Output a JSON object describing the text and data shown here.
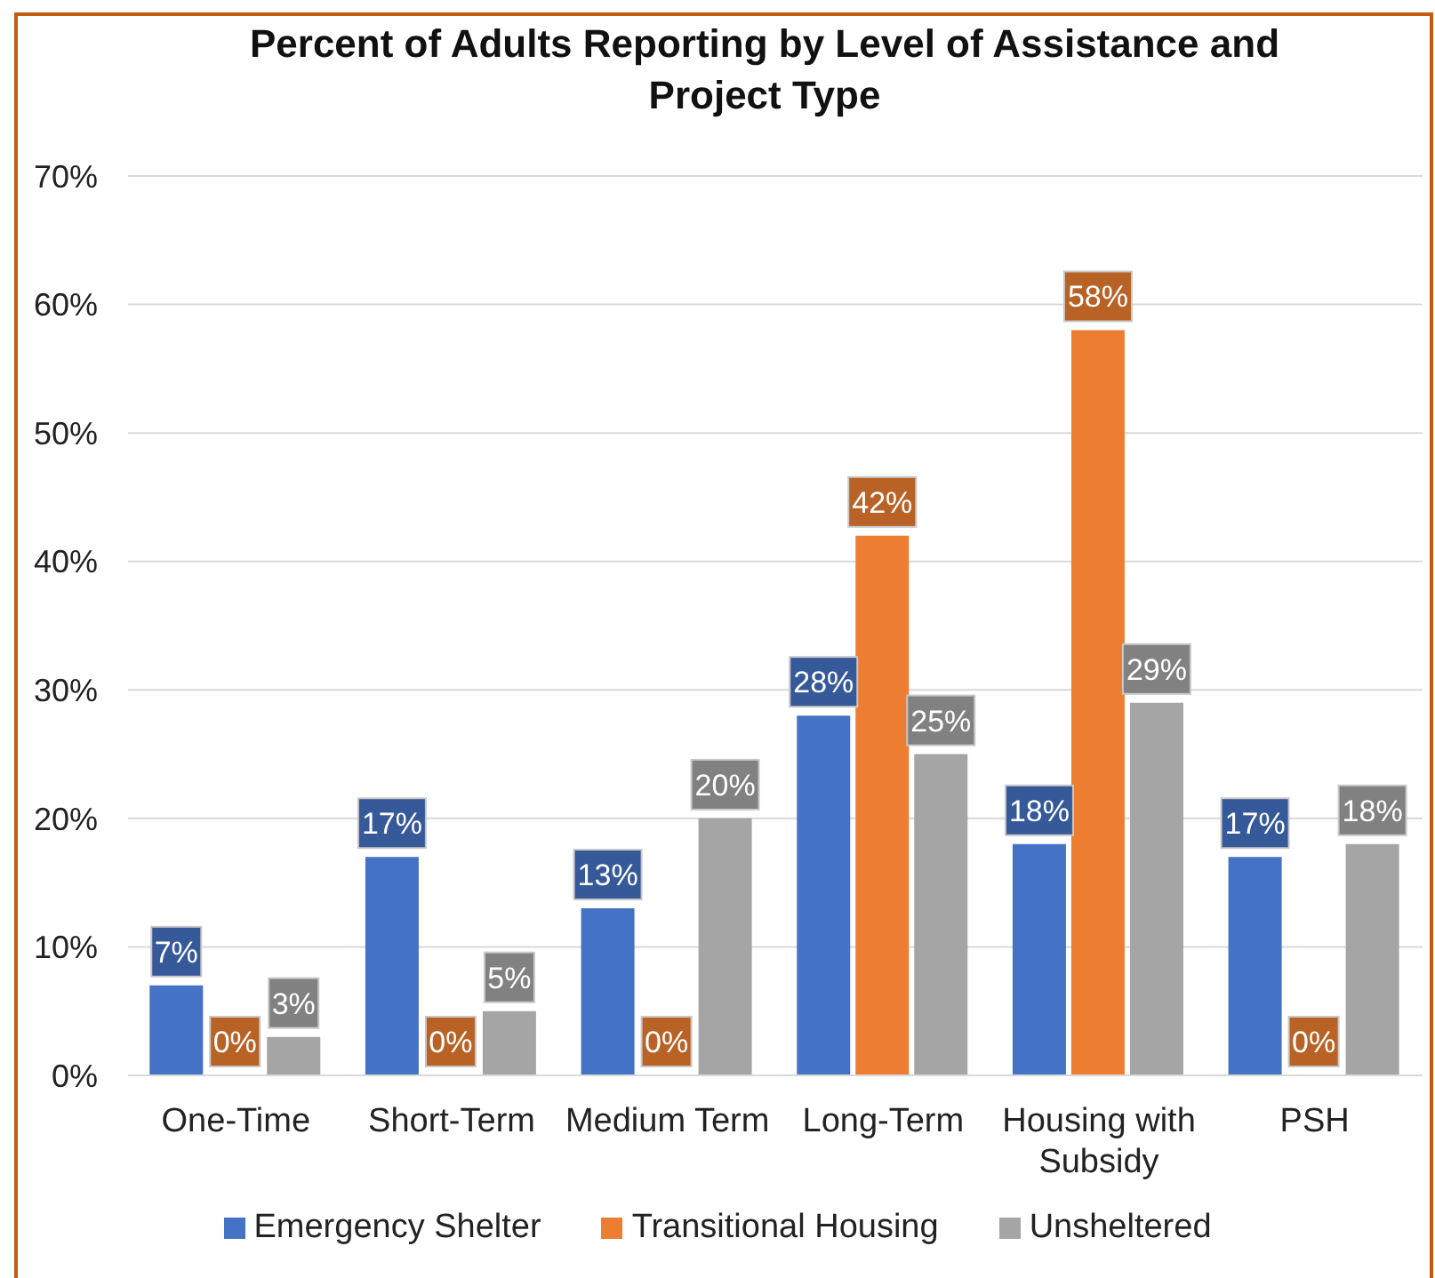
{
  "chart_data": {
    "type": "bar",
    "title": "Percent of Adults Reporting by Level of Assistance and Project Type",
    "categories": [
      "One-Time",
      "Short-Term",
      "Medium Term",
      "Long-Term",
      "Housing with Subsidy",
      "PSH"
    ],
    "series": [
      {
        "name": "Emergency Shelter",
        "color": "#4472c4",
        "values": [
          7,
          17,
          13,
          28,
          18,
          17
        ],
        "value_labels": [
          "7%",
          "17%",
          "13%",
          "28%",
          "18%",
          "17%"
        ]
      },
      {
        "name": "Transitional Housing",
        "color": "#ed7d31",
        "values": [
          0,
          0,
          0,
          42,
          58,
          0
        ],
        "value_labels": [
          "0%",
          "0%",
          "0%",
          "42%",
          "58%",
          "0%"
        ]
      },
      {
        "name": "Unsheltered",
        "color": "#a5a5a5",
        "values": [
          3,
          5,
          20,
          25,
          29,
          18
        ],
        "value_labels": [
          "3%",
          "5%",
          "20%",
          "25%",
          "29%",
          "18%"
        ]
      }
    ],
    "ylim": [
      0,
      70
    ],
    "yticks": [
      {
        "value": 0,
        "label": "0%"
      },
      {
        "value": 10,
        "label": "10%"
      },
      {
        "value": 20,
        "label": "20%"
      },
      {
        "value": 30,
        "label": "30%"
      },
      {
        "value": 40,
        "label": "40%"
      },
      {
        "value": 50,
        "label": "50%"
      },
      {
        "value": 60,
        "label": "60%"
      },
      {
        "value": 70,
        "label": "70%"
      }
    ],
    "grid": "y",
    "legend": "bottom"
  }
}
